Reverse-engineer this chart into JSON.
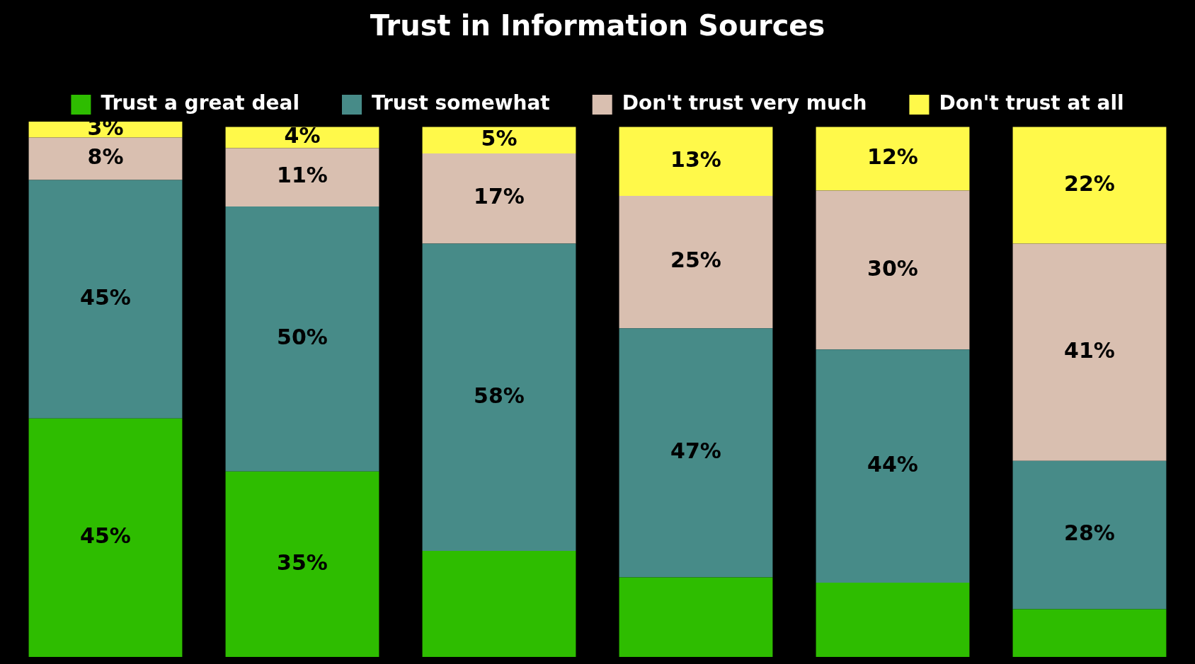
{
  "chart_data": {
    "type": "bar",
    "title": "Trust in Information Sources",
    "stacked": true,
    "legend": "top",
    "categories": [
      null,
      null,
      null,
      null,
      null,
      null
    ],
    "ylim": [
      0,
      101
    ],
    "tick_labels": false,
    "series": [
      {
        "name": "Trust a great deal",
        "color": "#2ebd00",
        "values": [
          45,
          35,
          20,
          15,
          14,
          9
        ],
        "value_labels": [
          "45%",
          "35%",
          null,
          null,
          null,
          null
        ]
      },
      {
        "name": "Trust somewhat",
        "color": "#478b88",
        "values": [
          45,
          50,
          58,
          47,
          44,
          28
        ],
        "value_labels": [
          "45%",
          "50%",
          "58%",
          "47%",
          "44%",
          "28%"
        ]
      },
      {
        "name": "Don't trust very much",
        "color": "#d9bfb0",
        "values": [
          8,
          11,
          17,
          25,
          30,
          41
        ],
        "value_labels": [
          "8%",
          "11%",
          "17%",
          "25%",
          "30%",
          "41%"
        ]
      },
      {
        "name": "Don't trust at all",
        "color": "#fff94a",
        "values": [
          3,
          4,
          5,
          13,
          12,
          22
        ],
        "value_labels": [
          "3%",
          "4%",
          "5%",
          "13%",
          "12%",
          "22%"
        ]
      }
    ]
  }
}
